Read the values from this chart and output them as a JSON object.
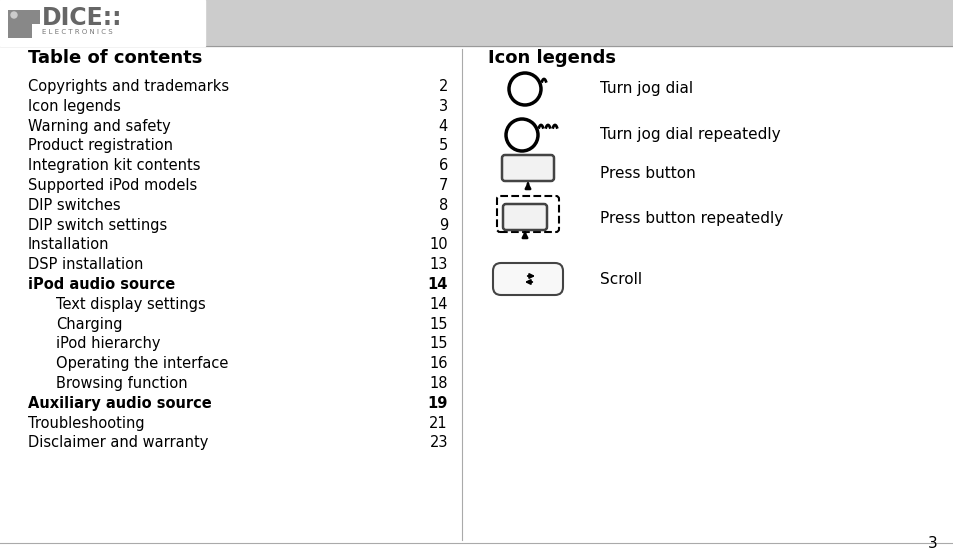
{
  "bg_color": "#ffffff",
  "header_bar_color": "#cccccc",
  "toc_title": "Table of contents",
  "toc_entries": [
    {
      "text": "Copyrights and trademarks",
      "page": "2",
      "bold": false,
      "indent": false
    },
    {
      "text": "Icon legends",
      "page": "3",
      "bold": false,
      "indent": false
    },
    {
      "text": "Warning and safety",
      "page": "4",
      "bold": false,
      "indent": false
    },
    {
      "text": "Product registration",
      "page": "5",
      "bold": false,
      "indent": false
    },
    {
      "text": "Integration kit contents",
      "page": "6",
      "bold": false,
      "indent": false
    },
    {
      "text": "Supported iPod models",
      "page": "7",
      "bold": false,
      "indent": false
    },
    {
      "text": "DIP switches",
      "page": "8",
      "bold": false,
      "indent": false
    },
    {
      "text": "DIP switch settings",
      "page": "9",
      "bold": false,
      "indent": false
    },
    {
      "text": "Installation",
      "page": "10",
      "bold": false,
      "indent": false
    },
    {
      "text": "DSP installation",
      "page": "13",
      "bold": false,
      "indent": false
    },
    {
      "text": "iPod audio source",
      "page": "14",
      "bold": true,
      "indent": false
    },
    {
      "text": "Text display settings",
      "page": "14",
      "bold": false,
      "indent": true
    },
    {
      "text": "Charging",
      "page": "15",
      "bold": false,
      "indent": true
    },
    {
      "text": "iPod hierarchy",
      "page": "15",
      "bold": false,
      "indent": true
    },
    {
      "text": "Operating the interface",
      "page": "16",
      "bold": false,
      "indent": true
    },
    {
      "text": "Browsing function",
      "page": "18",
      "bold": false,
      "indent": true
    },
    {
      "text": "Auxiliary audio source",
      "page": "19",
      "bold": true,
      "indent": false
    },
    {
      "text": "Troubleshooting",
      "page": "21",
      "bold": false,
      "indent": false
    },
    {
      "text": "Disclaimer and warranty",
      "page": "23",
      "bold": false,
      "indent": false
    }
  ],
  "icon_title": "Icon legends",
  "icon_labels": [
    "Turn jog dial",
    "Turn jog dial repeatedly",
    "Press button",
    "Press button repeatedly",
    "Scroll"
  ],
  "page_number": "3"
}
